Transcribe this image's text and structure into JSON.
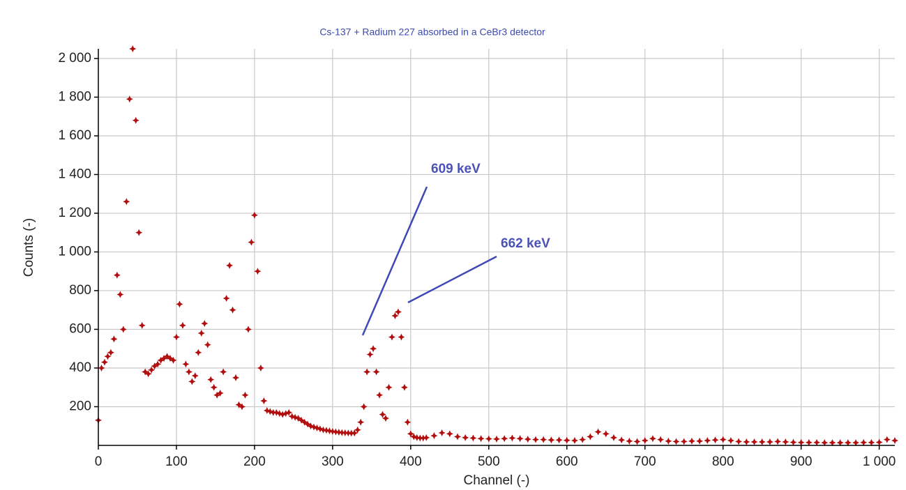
{
  "chart_data": {
    "type": "scatter",
    "title": "Cs-137 + Radium 227 absorbed in a CeBr3 detector",
    "xlabel": "Channel (-)",
    "ylabel": "Counts (-)",
    "annotations": [
      "609 keV",
      "662 keV"
    ],
    "color": "#b20d0d",
    "grid": true,
    "xlim": [
      0,
      1020
    ],
    "ylim": [
      0,
      2050
    ],
    "xticks": [
      0,
      100,
      200,
      300,
      400,
      500,
      600,
      700,
      800,
      900,
      {
        "value": 1000,
        "label": "1 000"
      }
    ],
    "yticks": [
      200,
      400,
      600,
      800,
      {
        "value": 1000,
        "label": "1 000"
      },
      {
        "value": 1200,
        "label": "1 200"
      },
      {
        "value": 1400,
        "label": "1 400"
      },
      {
        "value": 1600,
        "label": "1 600"
      },
      {
        "value": 1800,
        "label": "1 800"
      },
      {
        "value": 2000,
        "label": "2 000"
      }
    ],
    "x": [
      0,
      4,
      8,
      12,
      16,
      20,
      24,
      28,
      32,
      36,
      40,
      44,
      48,
      52,
      56,
      60,
      64,
      68,
      72,
      76,
      80,
      84,
      88,
      92,
      96,
      100,
      104,
      108,
      112,
      116,
      120,
      124,
      128,
      132,
      136,
      140,
      144,
      148,
      152,
      156,
      160,
      164,
      168,
      172,
      176,
      180,
      184,
      188,
      192,
      196,
      200,
      204,
      208,
      212,
      216,
      220,
      224,
      228,
      232,
      236,
      240,
      244,
      248,
      252,
      256,
      260,
      264,
      268,
      272,
      276,
      280,
      284,
      288,
      292,
      296,
      300,
      304,
      308,
      312,
      316,
      320,
      324,
      328,
      332,
      336,
      340,
      344,
      348,
      352,
      356,
      360,
      364,
      368,
      372,
      376,
      380,
      384,
      388,
      392,
      396,
      400,
      404,
      408,
      412,
      416,
      420,
      430,
      440,
      450,
      460,
      470,
      480,
      490,
      500,
      510,
      520,
      530,
      540,
      550,
      560,
      570,
      580,
      590,
      600,
      610,
      620,
      630,
      640,
      650,
      660,
      670,
      680,
      690,
      700,
      710,
      720,
      730,
      740,
      750,
      760,
      770,
      780,
      790,
      800,
      810,
      820,
      830,
      840,
      850,
      860,
      870,
      880,
      890,
      900,
      910,
      920,
      930,
      940,
      950,
      960,
      970,
      980,
      990,
      1000,
      1010,
      1020
    ],
    "values": [
      130,
      400,
      430,
      460,
      480,
      550,
      880,
      780,
      600,
      1260,
      1790,
      2050,
      1680,
      1100,
      620,
      380,
      370,
      390,
      410,
      420,
      440,
      450,
      460,
      450,
      440,
      560,
      730,
      620,
      420,
      380,
      330,
      360,
      480,
      580,
      630,
      520,
      340,
      300,
      260,
      270,
      380,
      760,
      930,
      700,
      350,
      210,
      200,
      260,
      600,
      1050,
      1190,
      900,
      400,
      230,
      180,
      175,
      170,
      170,
      165,
      160,
      165,
      170,
      150,
      145,
      140,
      130,
      120,
      110,
      100,
      95,
      90,
      85,
      80,
      78,
      75,
      72,
      70,
      68,
      66,
      65,
      64,
      63,
      64,
      80,
      120,
      200,
      380,
      470,
      500,
      380,
      260,
      160,
      140,
      300,
      560,
      670,
      690,
      560,
      300,
      120,
      60,
      45,
      40,
      38,
      38,
      40,
      50,
      65,
      60,
      45,
      40,
      38,
      35,
      34,
      33,
      35,
      38,
      35,
      32,
      30,
      30,
      28,
      28,
      26,
      25,
      30,
      45,
      70,
      60,
      40,
      28,
      22,
      20,
      25,
      35,
      30,
      22,
      20,
      20,
      22,
      22,
      25,
      28,
      30,
      25,
      20,
      18,
      18,
      18,
      18,
      20,
      18,
      16,
      15,
      15,
      15,
      14,
      14,
      14,
      14,
      14,
      15,
      15,
      16,
      30,
      25
    ]
  }
}
